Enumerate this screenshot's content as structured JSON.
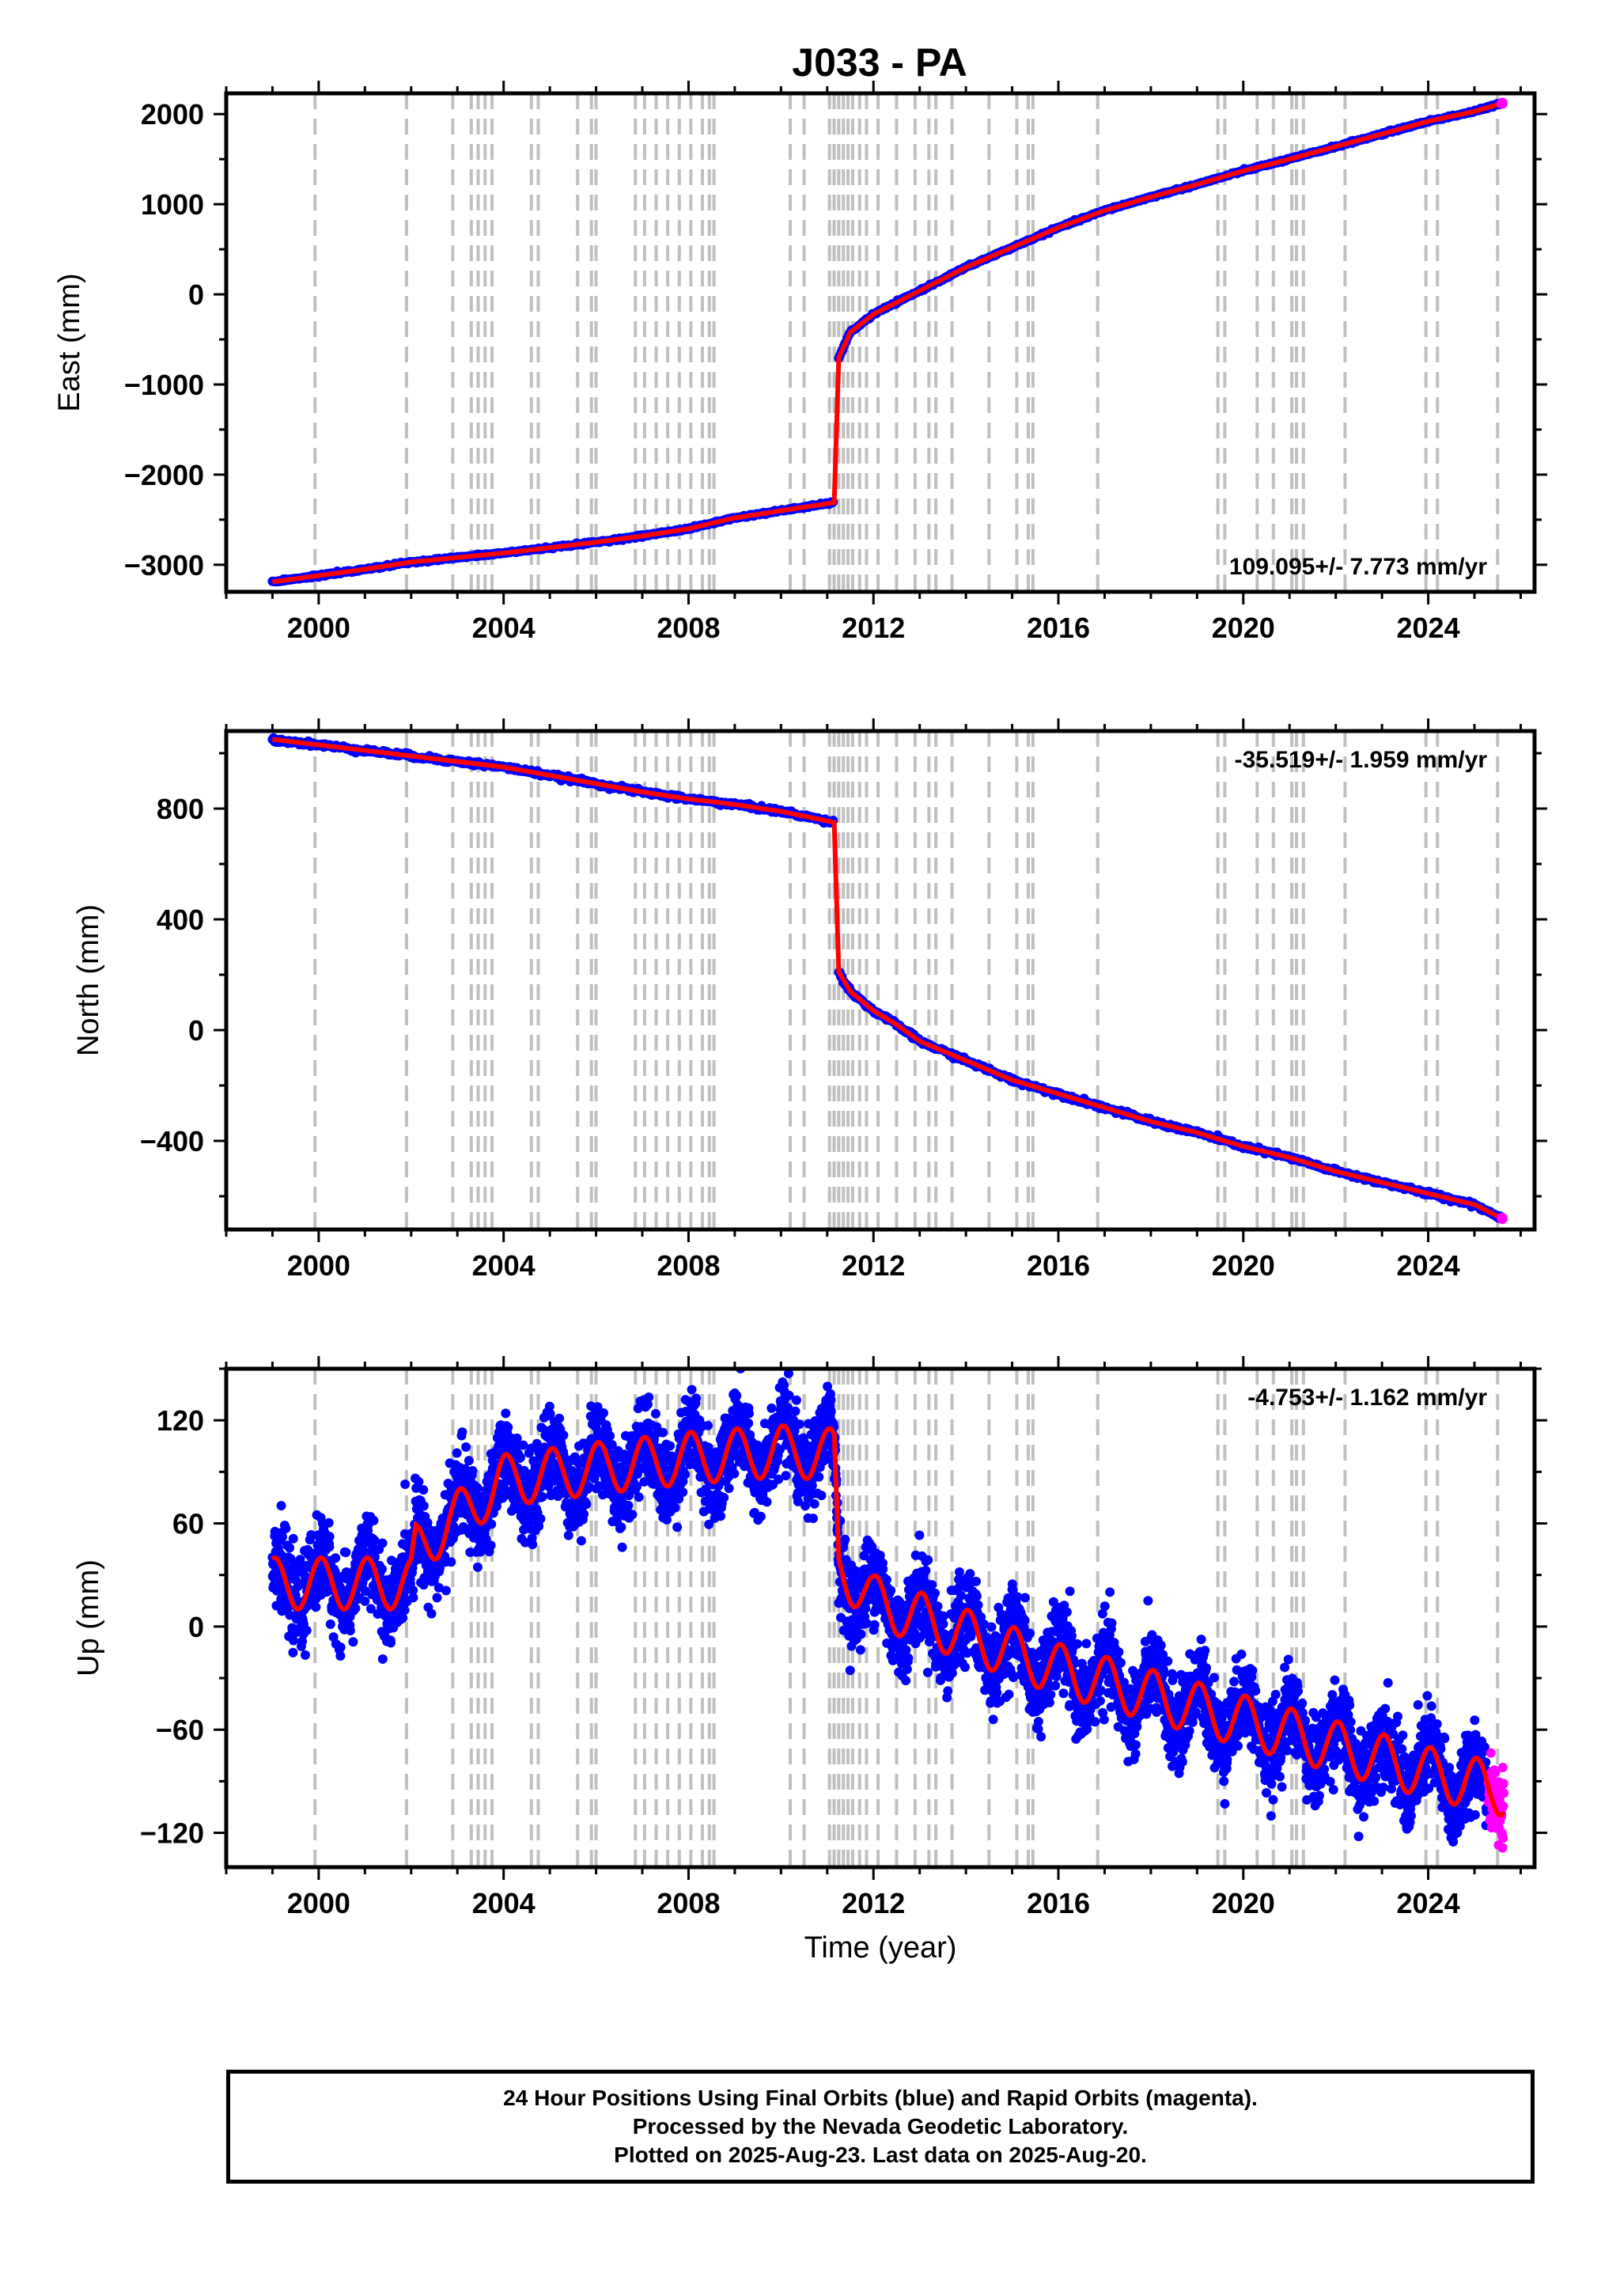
{
  "title": "J033 - PA",
  "footer": {
    "line1": "24 Hour Positions Using Final Orbits (blue) and Rapid Orbits (magenta).",
    "line2": "Processed by the Nevada Geodetic Laboratory.",
    "line3": "Plotted on 2025-Aug-23. Last data on 2025-Aug-20."
  },
  "chart_data": [
    {
      "type": "scatter",
      "name": "east",
      "ylabel": "East (mm)",
      "xlabel": "",
      "xlim": [
        1998.0,
        2026.3
      ],
      "ylim": [
        -3300,
        2230
      ],
      "xticks": [
        2000,
        2004,
        2008,
        2012,
        2016,
        2020,
        2024
      ],
      "yticks": [
        -3000,
        -2000,
        -1000,
        0,
        1000,
        2000
      ],
      "rate_label": "109.095+/- 7.773 mm/yr",
      "rate_position": "bottom-right",
      "series": [
        {
          "name": "final orbits",
          "color": "#0000ff",
          "x": [
            1999.0,
            2000.0,
            2001.0,
            2002.0,
            2003.0,
            2004.0,
            2005.0,
            2006.0,
            2007.0,
            2008.0,
            2009.0,
            2010.0,
            2011.15,
            2011.25,
            2011.5,
            2012.0,
            2012.5,
            2013.0,
            2014.0,
            2015.0,
            2016.0,
            2017.0,
            2018.0,
            2019.0,
            2020.0,
            2021.0,
            2022.0,
            2023.0,
            2024.0,
            2025.0,
            2025.6
          ],
          "y": [
            -3190,
            -3120,
            -3050,
            -2970,
            -2920,
            -2870,
            -2810,
            -2750,
            -2680,
            -2600,
            -2480,
            -2400,
            -2310,
            -700,
            -420,
            -220,
            -90,
            40,
            300,
            520,
            740,
            930,
            1080,
            1220,
            1370,
            1500,
            1640,
            1780,
            1920,
            2030,
            2120
          ]
        },
        {
          "name": "model",
          "color": "#ff0000",
          "x": [
            1999.0,
            2000.0,
            2001.0,
            2002.0,
            2003.0,
            2004.0,
            2005.0,
            2006.0,
            2007.0,
            2008.0,
            2009.0,
            2010.0,
            2011.15,
            2011.25,
            2011.5,
            2012.0,
            2012.5,
            2013.0,
            2014.0,
            2015.0,
            2016.0,
            2017.0,
            2018.0,
            2019.0,
            2020.0,
            2021.0,
            2022.0,
            2023.0,
            2024.0,
            2025.0,
            2025.6
          ],
          "y": [
            -3190,
            -3120,
            -3050,
            -2970,
            -2920,
            -2870,
            -2810,
            -2750,
            -2680,
            -2600,
            -2480,
            -2400,
            -2310,
            -700,
            -420,
            -220,
            -90,
            40,
            300,
            520,
            740,
            930,
            1080,
            1220,
            1370,
            1500,
            1640,
            1780,
            1920,
            2030,
            2120
          ]
        }
      ]
    },
    {
      "type": "scatter",
      "name": "north",
      "ylabel": "North (mm)",
      "xlabel": "",
      "xlim": [
        1998.0,
        2026.3
      ],
      "ylim": [
        -720,
        1080
      ],
      "xticks": [
        2000,
        2004,
        2008,
        2012,
        2016,
        2020,
        2024
      ],
      "yticks": [
        -400,
        0,
        400,
        800
      ],
      "rate_label": "-35.519+/- 1.959 mm/yr",
      "rate_position": "top-right",
      "series": [
        {
          "name": "final orbits",
          "color": "#0000ff",
          "x": [
            1999.0,
            2000.0,
            2001.0,
            2002.0,
            2003.0,
            2004.0,
            2005.0,
            2006.0,
            2007.0,
            2008.0,
            2009.0,
            2010.0,
            2011.15,
            2011.25,
            2011.5,
            2012.0,
            2012.5,
            2013.0,
            2014.0,
            2015.0,
            2016.0,
            2017.0,
            2018.0,
            2019.0,
            2020.0,
            2021.0,
            2022.0,
            2023.0,
            2024.0,
            2025.0,
            2025.6
          ],
          "y": [
            1050,
            1030,
            1010,
            990,
            970,
            950,
            920,
            890,
            860,
            835,
            815,
            790,
            750,
            210,
            140,
            70,
            20,
            -40,
            -110,
            -180,
            -230,
            -280,
            -330,
            -370,
            -420,
            -460,
            -510,
            -550,
            -590,
            -630,
            -680
          ]
        },
        {
          "name": "model",
          "color": "#ff0000",
          "x": [
            1999.0,
            2000.0,
            2001.0,
            2002.0,
            2003.0,
            2004.0,
            2005.0,
            2006.0,
            2007.0,
            2008.0,
            2009.0,
            2010.0,
            2011.15,
            2011.25,
            2011.5,
            2012.0,
            2012.5,
            2013.0,
            2014.0,
            2015.0,
            2016.0,
            2017.0,
            2018.0,
            2019.0,
            2020.0,
            2021.0,
            2022.0,
            2023.0,
            2024.0,
            2025.0,
            2025.6
          ],
          "y": [
            1050,
            1030,
            1010,
            990,
            970,
            950,
            920,
            890,
            860,
            835,
            815,
            790,
            750,
            210,
            140,
            70,
            20,
            -40,
            -110,
            -180,
            -230,
            -280,
            -330,
            -370,
            -420,
            -460,
            -510,
            -550,
            -590,
            -630,
            -680
          ]
        }
      ]
    },
    {
      "type": "scatter",
      "name": "up",
      "ylabel": "Up (mm)",
      "xlabel": "Time (year)",
      "xlim": [
        1998.0,
        2026.3
      ],
      "ylim": [
        -140,
        150
      ],
      "xticks": [
        2000,
        2004,
        2008,
        2012,
        2016,
        2020,
        2024
      ],
      "yticks": [
        -120,
        -60,
        0,
        60,
        120
      ],
      "rate_label": "-4.753+/- 1.162 mm/yr",
      "rate_position": "top-right",
      "trend": {
        "x": [
          1999.0,
          2002.0,
          2002.1,
          2004.0,
          2006.0,
          2008.0,
          2010.0,
          2011.15,
          2011.25,
          2012.0,
          2014.0,
          2016.0,
          2018.0,
          2020.0,
          2022.0,
          2024.0,
          2025.6
        ],
        "y": [
          25,
          25,
          45,
          85,
          92,
          98,
          102,
          100,
          35,
          15,
          -5,
          -25,
          -40,
          -55,
          -70,
          -85,
          -95
        ]
      },
      "seasonal_amplitude": 15,
      "scatter_sigma": 12,
      "rapid_orbit_span": [
        2025.3,
        2025.64
      ],
      "series": [
        {
          "name": "final orbits",
          "color": "#0000ff"
        },
        {
          "name": "rapid orbits",
          "color": "#ff00ff"
        },
        {
          "name": "model",
          "color": "#ff0000"
        }
      ]
    }
  ],
  "event_lines": [
    1999.92,
    2001.9,
    2002.9,
    2003.3,
    2003.45,
    2003.6,
    2003.75,
    2004.6,
    2004.75,
    2005.6,
    2005.9,
    2006.0,
    2006.85,
    2007.05,
    2007.3,
    2007.55,
    2007.8,
    2008.05,
    2008.3,
    2008.45,
    2008.55,
    2010.2,
    2010.5,
    2011.05,
    2011.15,
    2011.25,
    2011.35,
    2011.45,
    2011.55,
    2011.7,
    2011.85,
    2012.1,
    2012.5,
    2012.9,
    2013.2,
    2013.35,
    2013.7,
    2014.5,
    2015.1,
    2015.35,
    2015.45,
    2016.85,
    2019.45,
    2019.6,
    2020.3,
    2020.65,
    2021.05,
    2021.15,
    2021.3,
    2022.2,
    2023.95,
    2024.2,
    2025.5
  ],
  "colors": {
    "final_orbits": "#0000ff",
    "rapid_orbits": "#ff00ff",
    "model": "#ff0000",
    "event_line": "#bfbfbf",
    "frame": "#000000"
  }
}
